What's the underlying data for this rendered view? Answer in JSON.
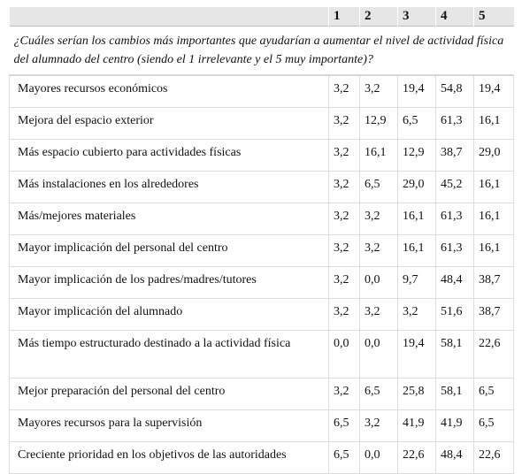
{
  "table": {
    "header": [
      "",
      "1",
      "2",
      "3",
      "4",
      "5"
    ],
    "question": "¿Cuáles serían los cambios más importantes que ayudarían a aumentar el nivel de actividad física del alumnado del centro (siendo el 1 irrelevante y el 5 muy importante)?",
    "rows": [
      {
        "label": "Mayores recursos económicos",
        "values": [
          "3,2",
          "3,2",
          "19,4",
          "54,8",
          "19,4"
        ]
      },
      {
        "label": "Mejora del espacio exterior",
        "values": [
          "3,2",
          "12,9",
          "6,5",
          "61,3",
          "16,1"
        ]
      },
      {
        "label": "Más espacio cubierto para actividades físicas",
        "values": [
          "3,2",
          "16,1",
          "12,9",
          "38,7",
          "29,0"
        ]
      },
      {
        "label": "Más instalaciones en los alrededores",
        "values": [
          "3,2",
          "6,5",
          "29,0",
          "45,2",
          "16,1"
        ]
      },
      {
        "label": "Más/mejores materiales",
        "values": [
          "3,2",
          "3,2",
          "16,1",
          "61,3",
          "16,1"
        ]
      },
      {
        "label": "Mayor implicación del personal del centro",
        "values": [
          "3,2",
          "3,2",
          "16,1",
          "61,3",
          "16,1"
        ]
      },
      {
        "label": "Mayor implicación de los padres/madres/tutores",
        "values": [
          "3,2",
          "0,0",
          "9,7",
          "48,4",
          "38,7"
        ]
      },
      {
        "label": "Mayor implicación del alumnado",
        "values": [
          "3,2",
          "3,2",
          "3,2",
          "51,6",
          "38,7"
        ]
      },
      {
        "label": "Más tiempo estructurado destinado a la actividad física",
        "values": [
          "0,0",
          "0,0",
          "19,4",
          "58,1",
          "22,6"
        ]
      },
      {
        "label": "Mejor preparación del personal del centro",
        "values": [
          "3,2",
          "6,5",
          "25,8",
          "58,1",
          "6,5"
        ]
      },
      {
        "label": "Mayores recursos para la supervisión",
        "values": [
          "6,5",
          "3,2",
          "41,9",
          "41,9",
          "6,5"
        ]
      },
      {
        "label": "Creciente prioridad en los objetivos de las autoridades",
        "values": [
          "6,5",
          "0,0",
          "22,6",
          "48,4",
          "22,6"
        ]
      }
    ]
  }
}
